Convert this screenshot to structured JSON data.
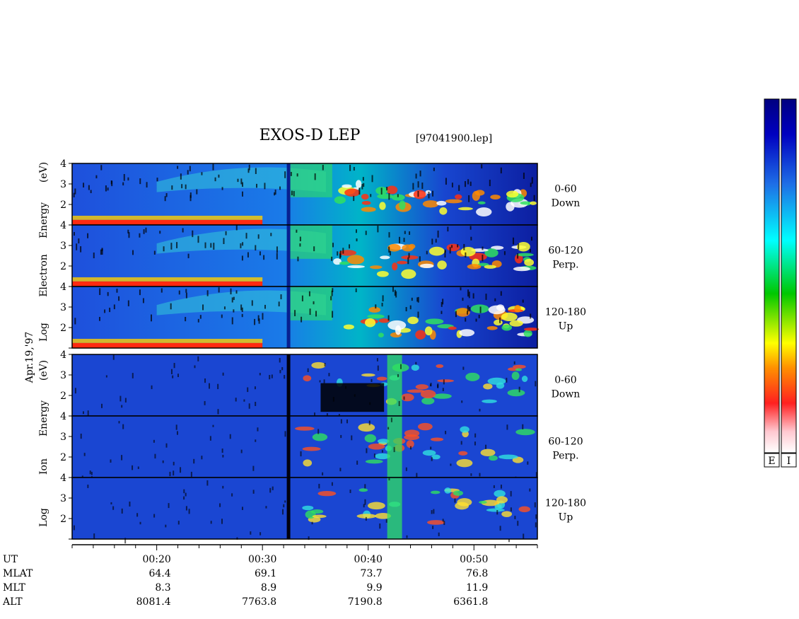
{
  "chart_data": {
    "type": "heatmap",
    "title": "EXOS-D LEP",
    "filename": "[97041900.lep]",
    "date_label": "Apr.19,'97",
    "species": [
      {
        "name": "Electron",
        "ylabel_parts": [
          "Log",
          "Electron",
          "Energy",
          "(eV)"
        ],
        "ylim": [
          1,
          4
        ],
        "yticks": [
          "2",
          "3",
          "4"
        ],
        "panels": [
          {
            "range": "0-60",
            "direction": "Down"
          },
          {
            "range": "60-120",
            "direction": "Perp."
          },
          {
            "range": "120-180",
            "direction": "Up"
          }
        ]
      },
      {
        "name": "Ion",
        "ylabel_parts": [
          "Log",
          "Ion",
          "Energy",
          "(eV)"
        ],
        "ylim": [
          1,
          4
        ],
        "yticks": [
          "2",
          "3",
          "4"
        ],
        "panels": [
          {
            "range": "0-60",
            "direction": "Down"
          },
          {
            "range": "60-120",
            "direction": "Perp."
          },
          {
            "range": "120-180",
            "direction": "Up"
          }
        ]
      }
    ],
    "x_axis": {
      "label": "UT",
      "range_minutes": [
        12,
        56
      ],
      "ticks": [
        {
          "ut": "00:20",
          "mlat": "64.4",
          "mlt": "8.3",
          "alt": "8081.4"
        },
        {
          "ut": "00:30",
          "mlat": "69.1",
          "mlt": "8.9",
          "alt": "7763.8"
        },
        {
          "ut": "00:40",
          "mlat": "73.7",
          "mlt": "9.9",
          "alt": "7190.8"
        },
        {
          "ut": "00:50",
          "mlat": "76.8",
          "mlt": "11.9",
          "alt": "6361.8"
        }
      ]
    },
    "row_labels": [
      "UT",
      "MLAT",
      "MLT",
      "ALT"
    ],
    "colorbars": [
      {
        "label": "E"
      },
      {
        "label": "I"
      }
    ],
    "colormap": [
      "#ffffff",
      "#ffc0c8",
      "#ff2020",
      "#ff8000",
      "#ffff00",
      "#00c800",
      "#00ffff",
      "#1e6ee6",
      "#0000a0"
    ],
    "grid": false
  }
}
